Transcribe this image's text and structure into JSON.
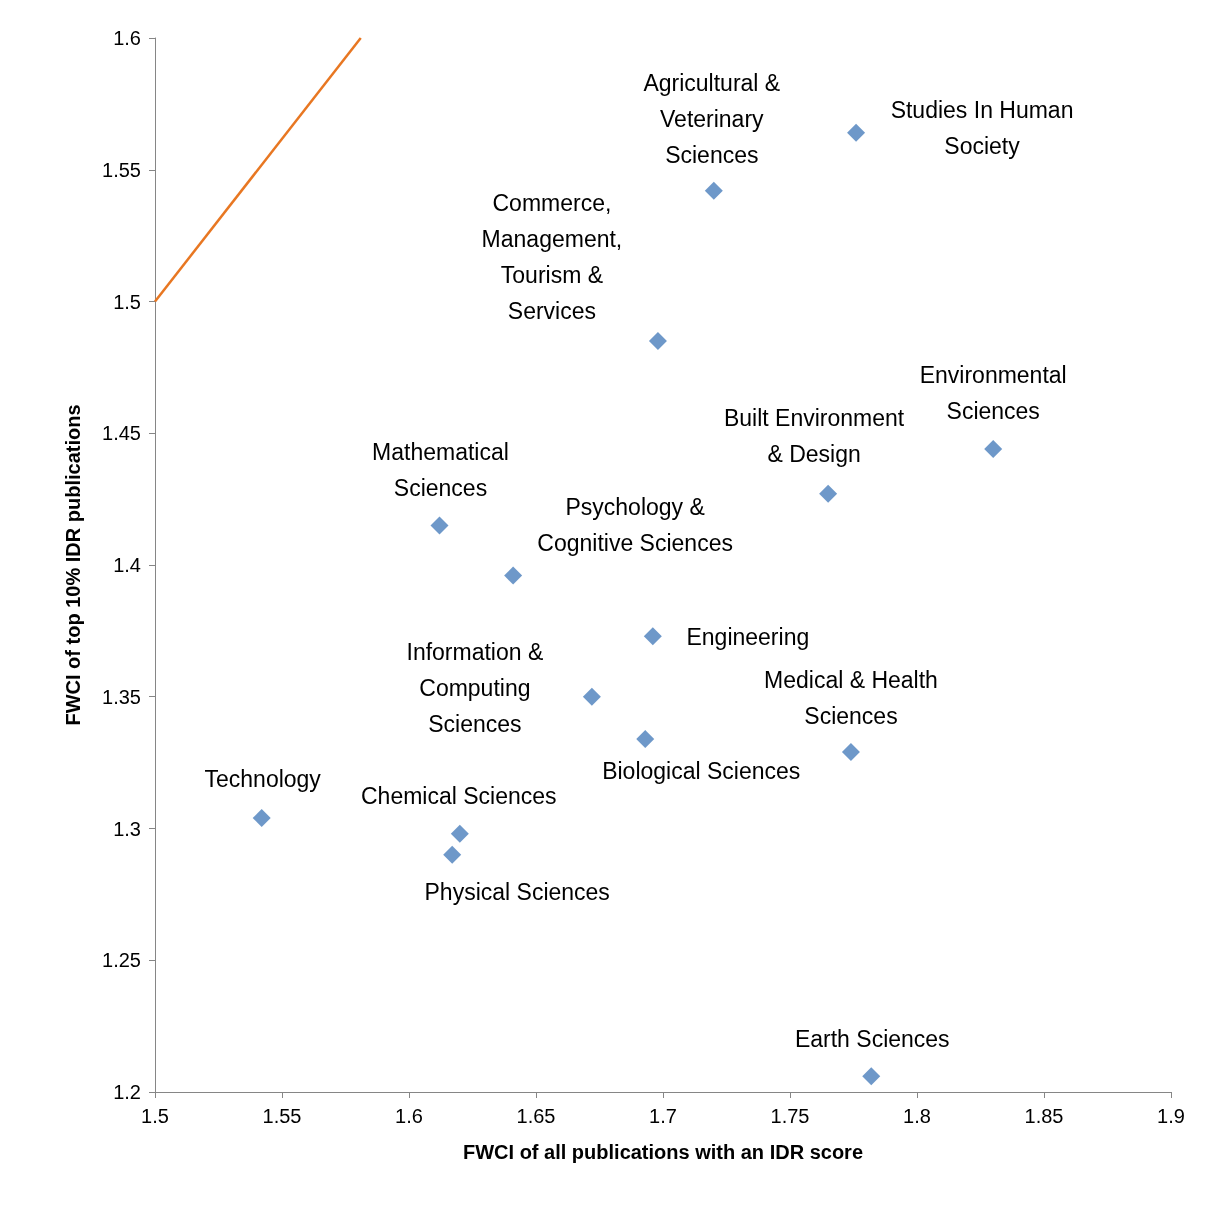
{
  "chart_data": {
    "type": "scatter",
    "xlabel": "FWCI of all publications with an IDR score",
    "ylabel": "FWCI of top 10% IDR publications",
    "xlim": [
      1.5,
      1.9
    ],
    "xticks": [
      1.5,
      1.55,
      1.6,
      1.65,
      1.7,
      1.75,
      1.8,
      1.85,
      1.9
    ],
    "ylim": [
      1.2,
      1.6
    ],
    "yticks": [
      1.2,
      1.25,
      1.3,
      1.35,
      1.4,
      1.45,
      1.5,
      1.55,
      1.6
    ],
    "grid": false,
    "marker": "diamond",
    "series": [
      {
        "color": "#4a7ebb",
        "x": [
          1.72,
          1.776,
          1.698,
          1.83,
          1.765,
          1.612,
          1.641,
          1.696,
          1.672,
          1.693,
          1.774,
          1.542,
          1.62,
          1.617,
          1.782
        ],
        "values": [
          1.542,
          1.564,
          1.485,
          1.444,
          1.427,
          1.415,
          1.396,
          1.373,
          1.35,
          1.334,
          1.329,
          1.304,
          1.298,
          1.29,
          1.206
        ]
      },
      {
        "type": "line",
        "color": "#e87722",
        "x": [
          1.5,
          1.581
        ],
        "values": [
          1.5,
          1.6
        ],
        "marker": "none"
      }
    ],
    "annotations": [
      {
        "text": "Agricultural &\nVeterinary\nSciences",
        "x": 1.72,
        "y": 1.542
      },
      {
        "text": "Studies In Human\nSociety",
        "x": 1.776,
        "y": 1.564
      },
      {
        "text": "Commerce,\nManagement,\nTourism &\nServices",
        "x": 1.698,
        "y": 1.485
      },
      {
        "text": "Environmental\nSciences",
        "x": 1.83,
        "y": 1.444
      },
      {
        "text": "Built Environment\n& Design",
        "x": 1.765,
        "y": 1.427
      },
      {
        "text": "Mathematical\nSciences",
        "x": 1.612,
        "y": 1.415
      },
      {
        "text": "Psychology &\nCognitive Sciences",
        "x": 1.641,
        "y": 1.396
      },
      {
        "text": "Engineering",
        "x": 1.696,
        "y": 1.373
      },
      {
        "text": "Information &\nComputing\nSciences",
        "x": 1.672,
        "y": 1.35
      },
      {
        "text": "Biological Sciences",
        "x": 1.693,
        "y": 1.334
      },
      {
        "text": "Medical & Health\nSciences",
        "x": 1.774,
        "y": 1.329
      },
      {
        "text": "Technology",
        "x": 1.542,
        "y": 1.304
      },
      {
        "text": "Chemical Sciences",
        "x": 1.62,
        "y": 1.298
      },
      {
        "text": "Physical Sciences",
        "x": 1.617,
        "y": 1.29
      },
      {
        "text": "Earth Sciences",
        "x": 1.782,
        "y": 1.206
      }
    ]
  }
}
